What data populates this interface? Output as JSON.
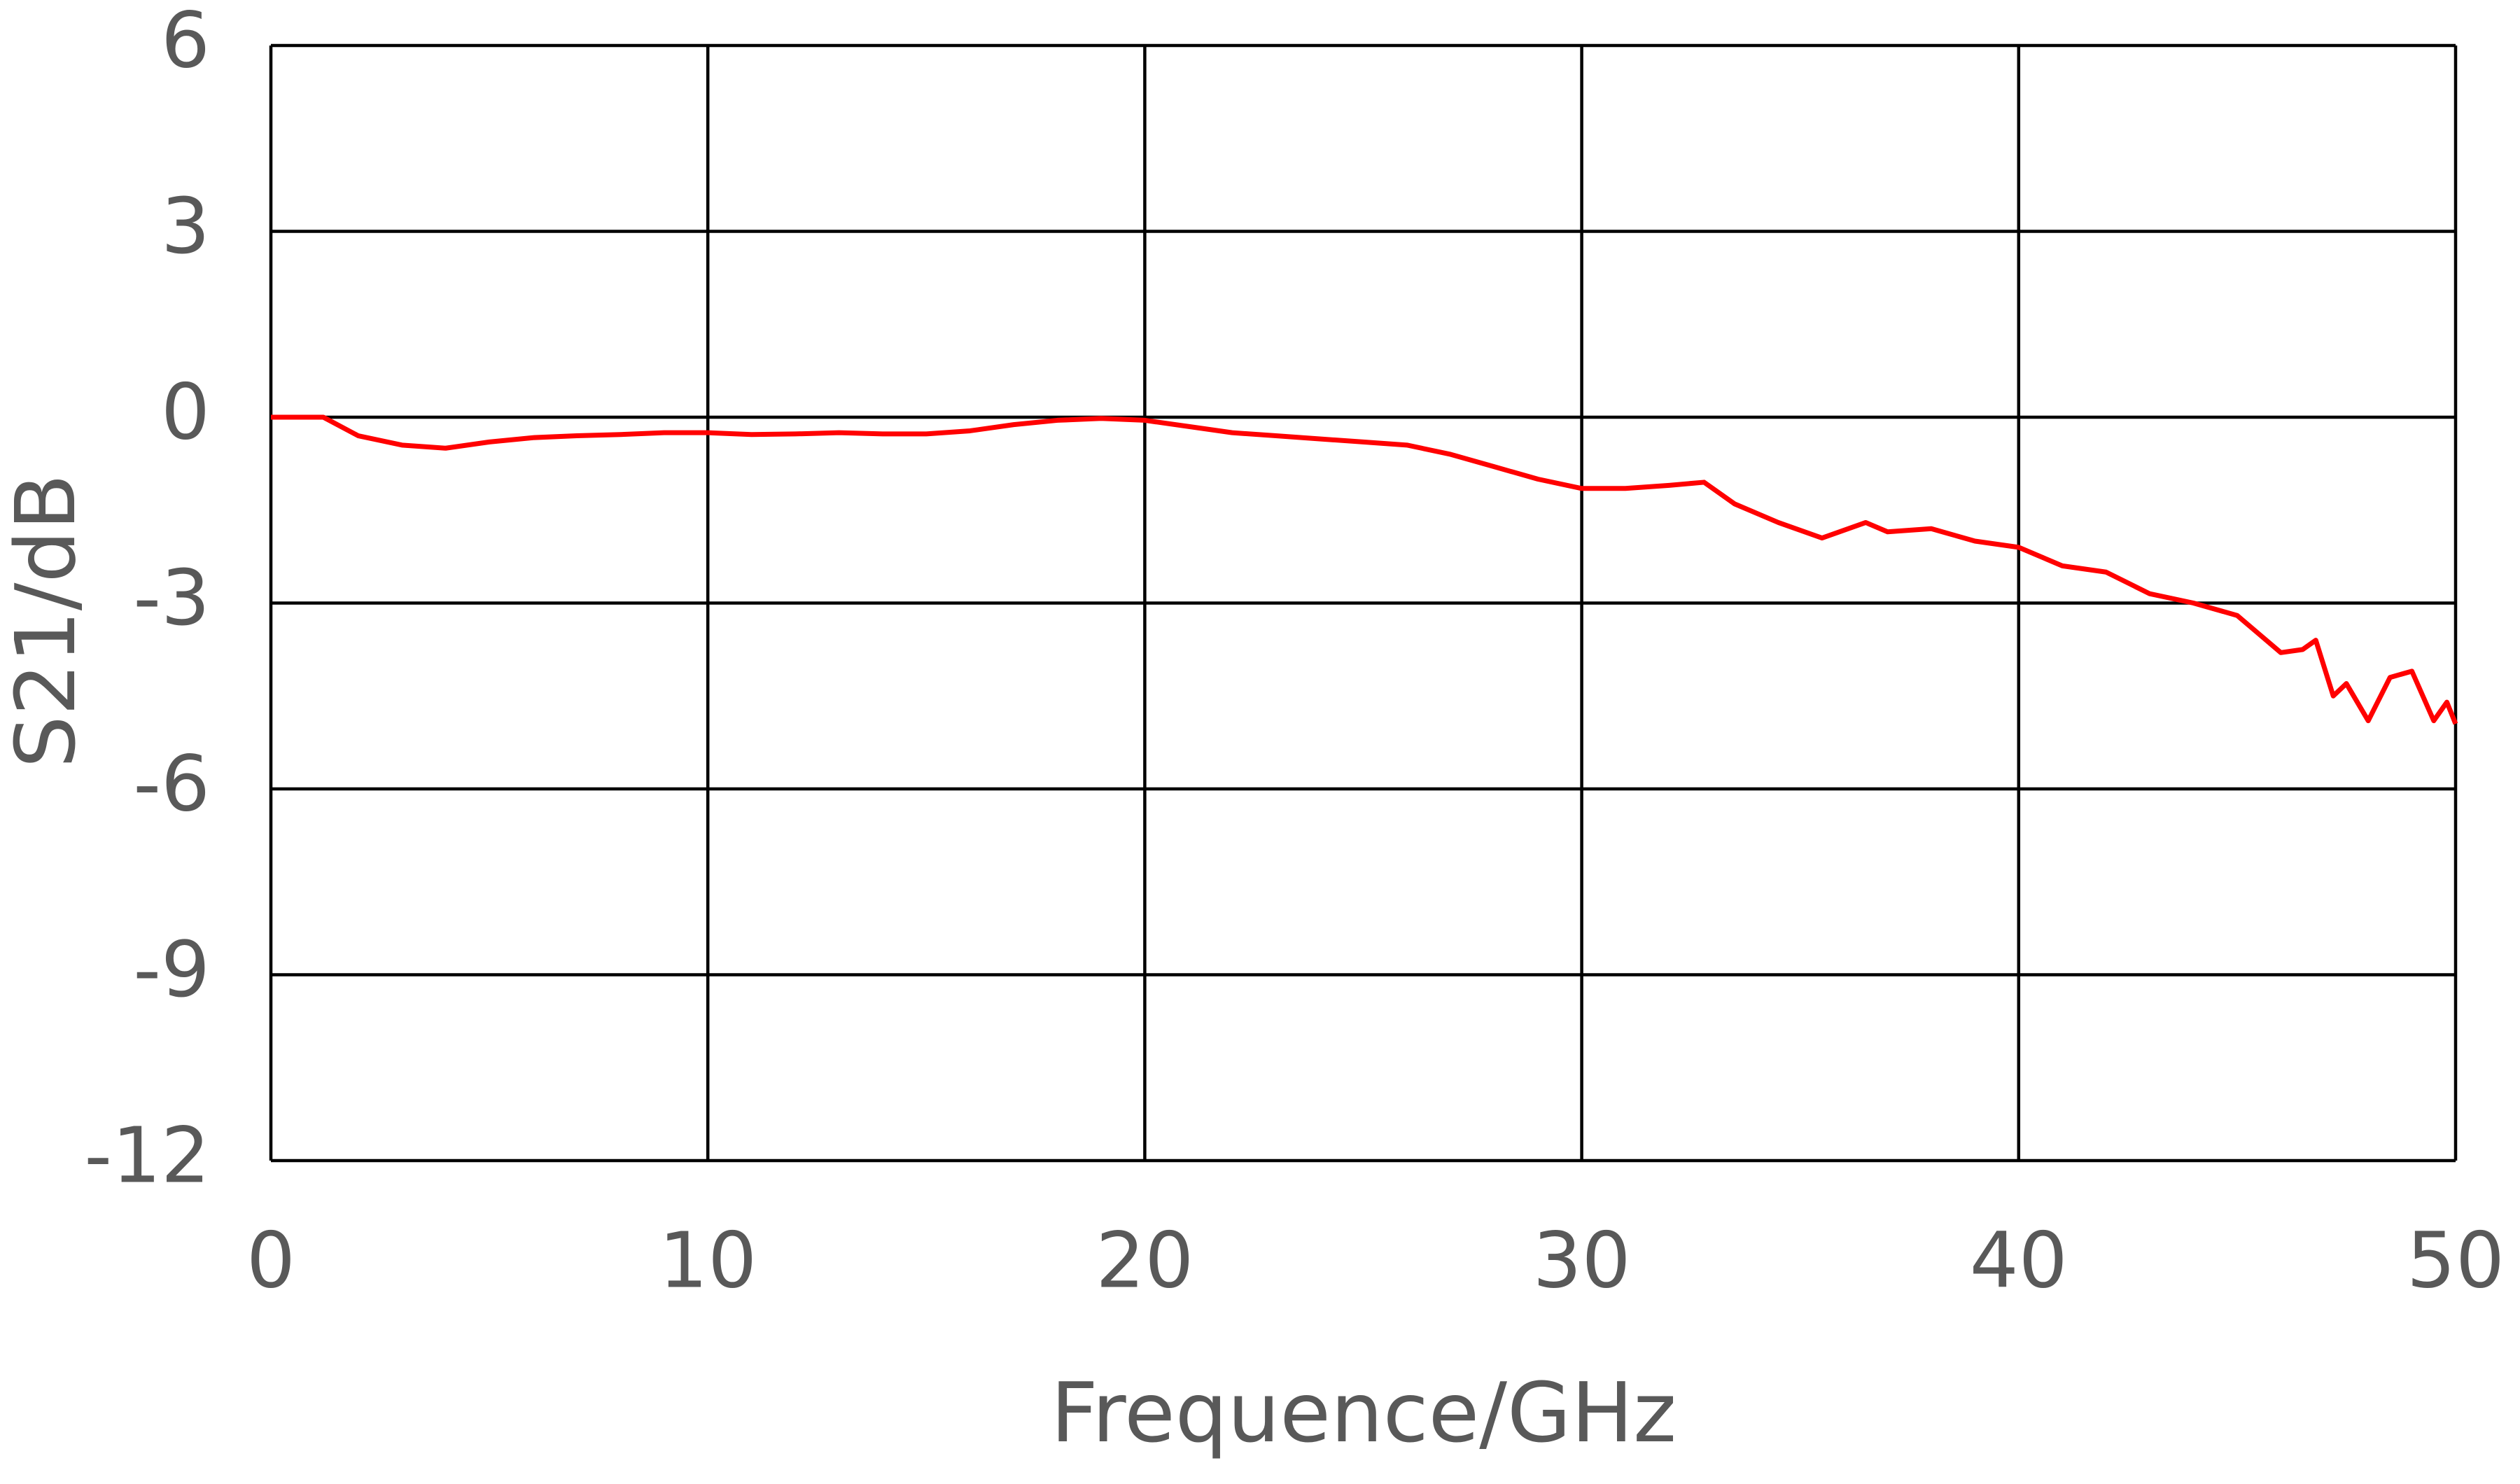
{
  "chart_data": {
    "type": "line",
    "xlabel": "Frequence/GHz",
    "ylabel": "S21/dB",
    "x": [
      0,
      1,
      1.2,
      2,
      3,
      4,
      5,
      6,
      7,
      8,
      9,
      10,
      11,
      12,
      13,
      14,
      15,
      16,
      17,
      18,
      19,
      20,
      21,
      22,
      23,
      24,
      25,
      26,
      27,
      28,
      29,
      30,
      31,
      32,
      32.8,
      33.5,
      34.5,
      35.5,
      36.5,
      37,
      38,
      39,
      40,
      41,
      42,
      43,
      44,
      45,
      45.5,
      46,
      46.5,
      46.8,
      47.2,
      47.5,
      48,
      48.5,
      49,
      49.5,
      49.8,
      50
    ],
    "series": [
      {
        "color": "#ff0000",
        "values": [
          0,
          0,
          0,
          -0.3,
          -0.45,
          -0.5,
          -0.4,
          -0.33,
          -0.3,
          -0.28,
          -0.25,
          -0.25,
          -0.28,
          -0.27,
          -0.25,
          -0.27,
          -0.27,
          -0.22,
          -0.12,
          -0.05,
          -0.02,
          -0.05,
          -0.15,
          -0.25,
          -0.3,
          -0.35,
          -0.4,
          -0.45,
          -0.6,
          -0.8,
          -1.0,
          -1.15,
          -1.15,
          -1.1,
          -1.05,
          -1.4,
          -1.7,
          -1.95,
          -1.7,
          -1.85,
          -1.8,
          -2.0,
          -2.1,
          -2.4,
          -2.5,
          -2.85,
          -3.0,
          -3.2,
          -3.5,
          -3.8,
          -3.75,
          -3.6,
          -4.5,
          -4.3,
          -4.9,
          -4.2,
          -4.1,
          -4.9,
          -4.6,
          -4.95
        ]
      }
    ],
    "xlim": [
      0,
      50
    ],
    "xticks": [
      0,
      10,
      20,
      30,
      40,
      50
    ],
    "ylim": [
      -12,
      6
    ],
    "yticks": [
      -12,
      -9,
      -6,
      -3,
      0,
      3,
      6
    ],
    "grid": true
  }
}
